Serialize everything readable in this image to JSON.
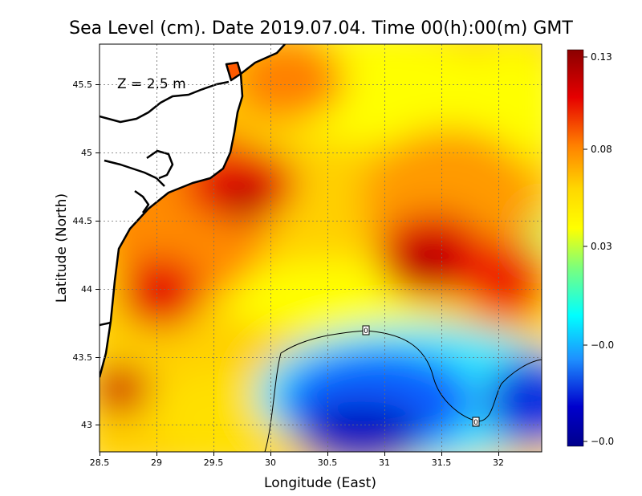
{
  "title": "Sea Level (cm). Date 2019.07.04. Time 00(h):00(m) GMT",
  "annotation": "Z = 2.5 m",
  "xlabel": "Longitude (East)",
  "ylabel": "Latitude (North)",
  "xticks": [
    "28.5",
    "29",
    "29.5",
    "30",
    "30.5",
    "31",
    "31.5",
    "32"
  ],
  "yticks": [
    "43",
    "43.5",
    "44",
    "44.5",
    "45",
    "45.5"
  ],
  "colorbar": {
    "labels": [
      "0.13",
      "0.08",
      "0.03",
      "−0.0",
      "−0.0"
    ],
    "colors": [
      "#8b0000",
      "#e60000",
      "#ff7f00",
      "#ffd700",
      "#ffff00",
      "#7cff7c",
      "#00ffff",
      "#1e90ff",
      "#0000cd",
      "#00008b"
    ]
  },
  "contour_label": "0",
  "chart_data": {
    "type": "heatmap",
    "title": "Sea Level (cm). Date 2019.07.04. Time 00(h):00(m) GMT",
    "xlabel": "Longitude (East)",
    "ylabel": "Latitude (North)",
    "xlim": [
      28.5,
      32.4
    ],
    "ylim": [
      42.8,
      45.8
    ],
    "value_range": [
      -0.05,
      0.13
    ],
    "grid": true,
    "features": [
      {
        "lon": 29.7,
        "lat": 44.6,
        "value": 0.12
      },
      {
        "lon": 31.3,
        "lat": 44.2,
        "value": 0.12
      },
      {
        "lon": 29.0,
        "lat": 44.0,
        "value": 0.11
      },
      {
        "lon": 28.7,
        "lat": 43.3,
        "value": 0.11
      },
      {
        "lon": 30.5,
        "lat": 43.0,
        "value": -0.04
      },
      {
        "lon": 32.3,
        "lat": 43.2,
        "value": -0.04
      }
    ]
  }
}
